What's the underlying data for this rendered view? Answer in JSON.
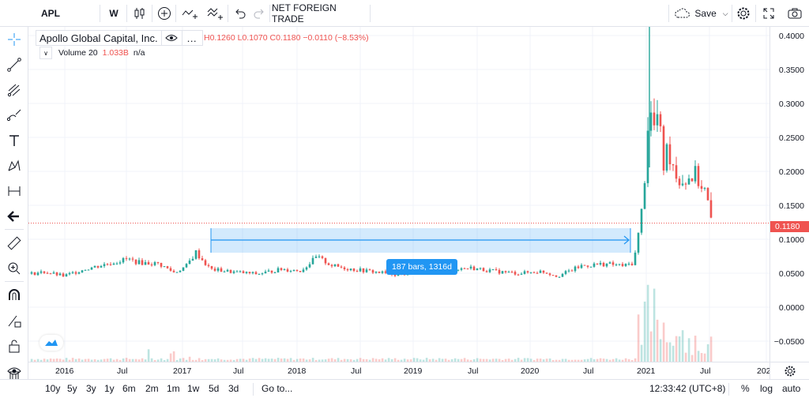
{
  "toolbar": {
    "symbol": "APL",
    "interval": "W",
    "indicator_name": "NET FOREIGN TRADE",
    "save_label": "Save"
  },
  "legend": {
    "title": "Apollo Global Capital, Inc.",
    "ohlc_text": "H0.1260 L0.1070 C0.1180 −0.0110 (−8.53%)",
    "volume_label": "Volume 20",
    "volume_value": "1.033B",
    "volume_na": "n/a"
  },
  "price_axis": {
    "labels": [
      "0.4000",
      "0.3500",
      "0.3000",
      "0.2500",
      "0.2000",
      "0.1500",
      "0.1000",
      "0.0500",
      "0.0000",
      "−0.0500"
    ],
    "last_price": "0.1180",
    "last_price_color": "#ef5350"
  },
  "time_axis": {
    "labels": [
      "2016",
      "Jul",
      "2017",
      "Jul",
      "2018",
      "Jul",
      "2019",
      "Jul",
      "2020",
      "Jul",
      "2021",
      "Jul",
      "202"
    ]
  },
  "measure": {
    "label": "187 bars, 1316d"
  },
  "bottom": {
    "ranges": [
      "10y",
      "5y",
      "3y",
      "1y",
      "6m",
      "2m",
      "1m",
      "1w",
      "5d",
      "3d"
    ],
    "goto": "Go to...",
    "clock": "12:33:42 (UTC+8)",
    "percent": "%",
    "log": "log",
    "auto": "auto"
  },
  "colors": {
    "up": "#26a69a",
    "down": "#ef5350",
    "accent": "#2196f3"
  },
  "chart_data": {
    "type": "candlestick",
    "interval": "W",
    "series": [
      {
        "name": "price",
        "x": [
          "2016",
          "Jul",
          "2017",
          "Jul",
          "2018",
          "Jul",
          "2019",
          "Jul",
          "2020",
          "Jul",
          "2021",
          "Jul"
        ],
        "close": [
          0.042,
          0.055,
          0.058,
          0.047,
          0.048,
          0.058,
          0.045,
          0.049,
          0.044,
          0.046,
          0.3,
          0.19
        ]
      }
    ],
    "ylim": [
      -0.07,
      0.42
    ],
    "last_close": 0.118
  }
}
